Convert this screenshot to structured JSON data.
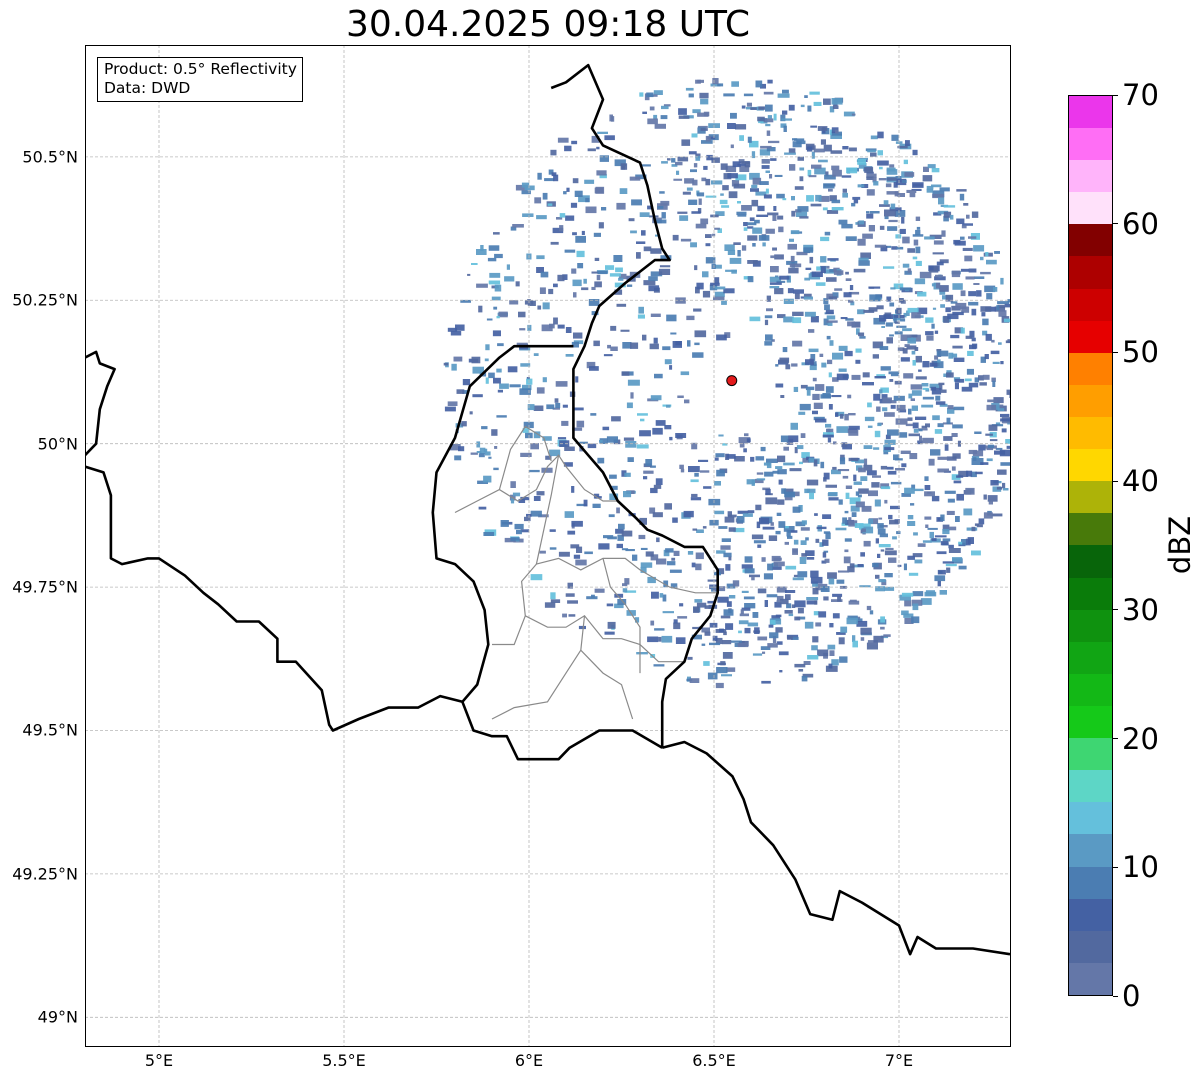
{
  "title": "30.04.2025 09:18 UTC",
  "info": {
    "product": "Product: 0.5° Reflectivity",
    "source": "Data: DWD"
  },
  "map": {
    "lon_range": [
      4.8,
      7.3
    ],
    "lat_range": [
      48.95,
      50.695
    ],
    "lat_ticks": [
      {
        "value": 49.0,
        "label": "49°N"
      },
      {
        "value": 49.25,
        "label": "49.25°N"
      },
      {
        "value": 49.5,
        "label": "49.5°N"
      },
      {
        "value": 49.75,
        "label": "49.75°N"
      },
      {
        "value": 50.0,
        "label": "50°N"
      },
      {
        "value": 50.25,
        "label": "50.25°N"
      },
      {
        "value": 50.5,
        "label": "50.5°N"
      }
    ],
    "lon_ticks": [
      {
        "value": 5.0,
        "label": "5°E"
      },
      {
        "value": 5.5,
        "label": "5.5°E"
      },
      {
        "value": 6.0,
        "label": "6°E"
      },
      {
        "value": 6.5,
        "label": "6.5°E"
      },
      {
        "value": 7.0,
        "label": "7°E"
      }
    ],
    "radar_site": {
      "lon": 6.548,
      "lat": 50.11,
      "color": "#e31a1c"
    },
    "borders": [
      [
        [
          6.06,
          50.62
        ],
        [
          6.1,
          50.63
        ],
        [
          6.16,
          50.66
        ],
        [
          6.2,
          50.6
        ],
        [
          6.17,
          50.55
        ],
        [
          6.2,
          50.52
        ],
        [
          6.3,
          50.49
        ],
        [
          6.32,
          50.45
        ],
        [
          6.34,
          50.39
        ],
        [
          6.36,
          50.34
        ],
        [
          6.38,
          50.32
        ],
        [
          6.34,
          50.32
        ],
        [
          6.3,
          50.3
        ],
        [
          6.26,
          50.28
        ],
        [
          6.19,
          50.24
        ],
        [
          6.17,
          50.21
        ],
        [
          6.15,
          50.17
        ],
        [
          6.12,
          50.13
        ],
        [
          6.12,
          50.07
        ],
        [
          6.12,
          50.01
        ],
        [
          6.16,
          49.98
        ],
        [
          6.2,
          49.95
        ],
        [
          6.24,
          49.9
        ],
        [
          6.29,
          49.87
        ],
        [
          6.32,
          49.85
        ],
        [
          6.36,
          49.84
        ],
        [
          6.42,
          49.82
        ],
        [
          6.47,
          49.82
        ],
        [
          6.51,
          49.78
        ],
        [
          6.51,
          49.74
        ],
        [
          6.49,
          49.7
        ],
        [
          6.44,
          49.66
        ],
        [
          6.42,
          49.62
        ],
        [
          6.37,
          49.59
        ],
        [
          6.36,
          49.55
        ],
        [
          6.36,
          49.47
        ]
      ],
      [
        [
          6.36,
          49.47
        ],
        [
          6.42,
          49.48
        ],
        [
          6.48,
          49.46
        ],
        [
          6.55,
          49.42
        ],
        [
          6.58,
          49.38
        ],
        [
          6.6,
          49.34
        ],
        [
          6.66,
          49.3
        ],
        [
          6.72,
          49.24
        ],
        [
          6.76,
          49.18
        ],
        [
          6.82,
          49.17
        ],
        [
          6.84,
          49.22
        ],
        [
          6.9,
          49.2
        ],
        [
          7.0,
          49.16
        ],
        [
          7.03,
          49.11
        ],
        [
          7.05,
          49.14
        ],
        [
          7.1,
          49.12
        ],
        [
          7.2,
          49.12
        ],
        [
          7.3,
          49.11
        ]
      ],
      [
        [
          4.8,
          50.15
        ],
        [
          4.83,
          50.16
        ],
        [
          4.84,
          50.14
        ],
        [
          4.88,
          50.13
        ],
        [
          4.86,
          50.1
        ],
        [
          4.84,
          50.06
        ],
        [
          4.83,
          50.0
        ],
        [
          4.8,
          49.98
        ]
      ],
      [
        [
          4.8,
          49.96
        ],
        [
          4.85,
          49.95
        ],
        [
          4.87,
          49.91
        ],
        [
          4.87,
          49.86
        ],
        [
          4.87,
          49.8
        ],
        [
          4.9,
          49.79
        ],
        [
          4.97,
          49.8
        ],
        [
          5.0,
          49.8
        ],
        [
          5.07,
          49.77
        ],
        [
          5.12,
          49.74
        ],
        [
          5.16,
          49.72
        ],
        [
          5.21,
          49.69
        ],
        [
          5.27,
          49.69
        ],
        [
          5.32,
          49.66
        ],
        [
          5.32,
          49.62
        ],
        [
          5.37,
          49.62
        ],
        [
          5.44,
          49.57
        ],
        [
          5.46,
          49.51
        ],
        [
          5.47,
          49.5
        ],
        [
          5.54,
          49.52
        ],
        [
          5.62,
          49.54
        ],
        [
          5.7,
          49.54
        ],
        [
          5.76,
          49.56
        ],
        [
          5.82,
          49.55
        ],
        [
          5.85,
          49.5
        ],
        [
          5.9,
          49.49
        ],
        [
          5.94,
          49.49
        ],
        [
          5.97,
          49.45
        ],
        [
          6.02,
          49.45
        ],
        [
          6.08,
          49.45
        ],
        [
          6.11,
          49.47
        ],
        [
          6.19,
          49.5
        ],
        [
          6.28,
          49.5
        ],
        [
          6.36,
          49.47
        ]
      ],
      [
        [
          5.82,
          49.55
        ],
        [
          5.86,
          49.58
        ],
        [
          5.89,
          49.65
        ],
        [
          5.88,
          49.71
        ],
        [
          5.85,
          49.76
        ],
        [
          5.8,
          49.79
        ],
        [
          5.75,
          49.8
        ],
        [
          5.74,
          49.88
        ],
        [
          5.75,
          49.95
        ],
        [
          5.8,
          50.01
        ],
        [
          5.84,
          50.1
        ],
        [
          5.92,
          50.15
        ],
        [
          5.96,
          50.17
        ],
        [
          6.02,
          50.17
        ],
        [
          6.07,
          50.17
        ],
        [
          6.12,
          50.17
        ]
      ]
    ],
    "admin_lines": [
      [
        [
          5.8,
          49.88
        ],
        [
          5.86,
          49.9
        ],
        [
          5.92,
          49.92
        ],
        [
          5.97,
          49.9
        ],
        [
          6.02,
          49.92
        ],
        [
          6.05,
          49.96
        ],
        [
          6.08,
          49.98
        ],
        [
          6.1,
          49.96
        ],
        [
          6.15,
          49.92
        ],
        [
          6.2,
          49.9
        ],
        [
          6.24,
          49.9
        ]
      ],
      [
        [
          5.92,
          49.92
        ],
        [
          5.95,
          49.99
        ],
        [
          5.99,
          50.03
        ],
        [
          6.04,
          50.01
        ],
        [
          6.06,
          49.97
        ]
      ],
      [
        [
          6.08,
          49.98
        ],
        [
          6.06,
          49.91
        ],
        [
          6.04,
          49.85
        ],
        [
          6.02,
          49.79
        ]
      ],
      [
        [
          6.02,
          49.79
        ],
        [
          6.08,
          49.8
        ],
        [
          6.14,
          49.78
        ],
        [
          6.2,
          49.8
        ],
        [
          6.26,
          49.8
        ],
        [
          6.3,
          49.78
        ],
        [
          6.38,
          49.75
        ],
        [
          6.45,
          49.74
        ],
        [
          6.51,
          49.74
        ]
      ],
      [
        [
          6.02,
          49.79
        ],
        [
          5.98,
          49.76
        ],
        [
          5.99,
          49.7
        ],
        [
          5.96,
          49.65
        ],
        [
          5.9,
          49.65
        ]
      ],
      [
        [
          5.99,
          49.7
        ],
        [
          6.05,
          49.68
        ],
        [
          6.1,
          49.68
        ],
        [
          6.15,
          49.7
        ],
        [
          6.2,
          49.66
        ],
        [
          6.25,
          49.66
        ],
        [
          6.3,
          49.65
        ],
        [
          6.35,
          49.62
        ],
        [
          6.42,
          49.62
        ]
      ],
      [
        [
          6.15,
          49.7
        ],
        [
          6.14,
          49.64
        ],
        [
          6.1,
          49.6
        ],
        [
          6.05,
          49.55
        ],
        [
          5.96,
          49.54
        ],
        [
          5.9,
          49.52
        ]
      ],
      [
        [
          6.14,
          49.64
        ],
        [
          6.2,
          49.6
        ],
        [
          6.25,
          49.58
        ],
        [
          6.28,
          49.52
        ]
      ],
      [
        [
          6.2,
          49.8
        ],
        [
          6.22,
          49.75
        ],
        [
          6.26,
          49.72
        ],
        [
          6.3,
          49.68
        ],
        [
          6.3,
          49.6
        ]
      ]
    ]
  },
  "colorbar": {
    "label": "dBZ",
    "min": 0,
    "max": 70,
    "ticks": [
      "0",
      "10",
      "20",
      "30",
      "40",
      "50",
      "60",
      "70"
    ],
    "colors": [
      "#6477a8",
      "#52699f",
      "#4461a3",
      "#4b7db2",
      "#5a9ac4",
      "#64c0dc",
      "#5dd6c6",
      "#3ed672",
      "#15c919",
      "#13b816",
      "#11a514",
      "#0f920f",
      "#0a7c0a",
      "#08650a",
      "#487a0a",
      "#adb308",
      "#ffd700",
      "#ffbb00",
      "#ff9e00",
      "#ff8000",
      "#e60000",
      "#cd0000",
      "#ad0000",
      "#820000",
      "#ffe1fa",
      "#ffb4fa",
      "#ff6ef5",
      "#eb36eb"
    ]
  }
}
